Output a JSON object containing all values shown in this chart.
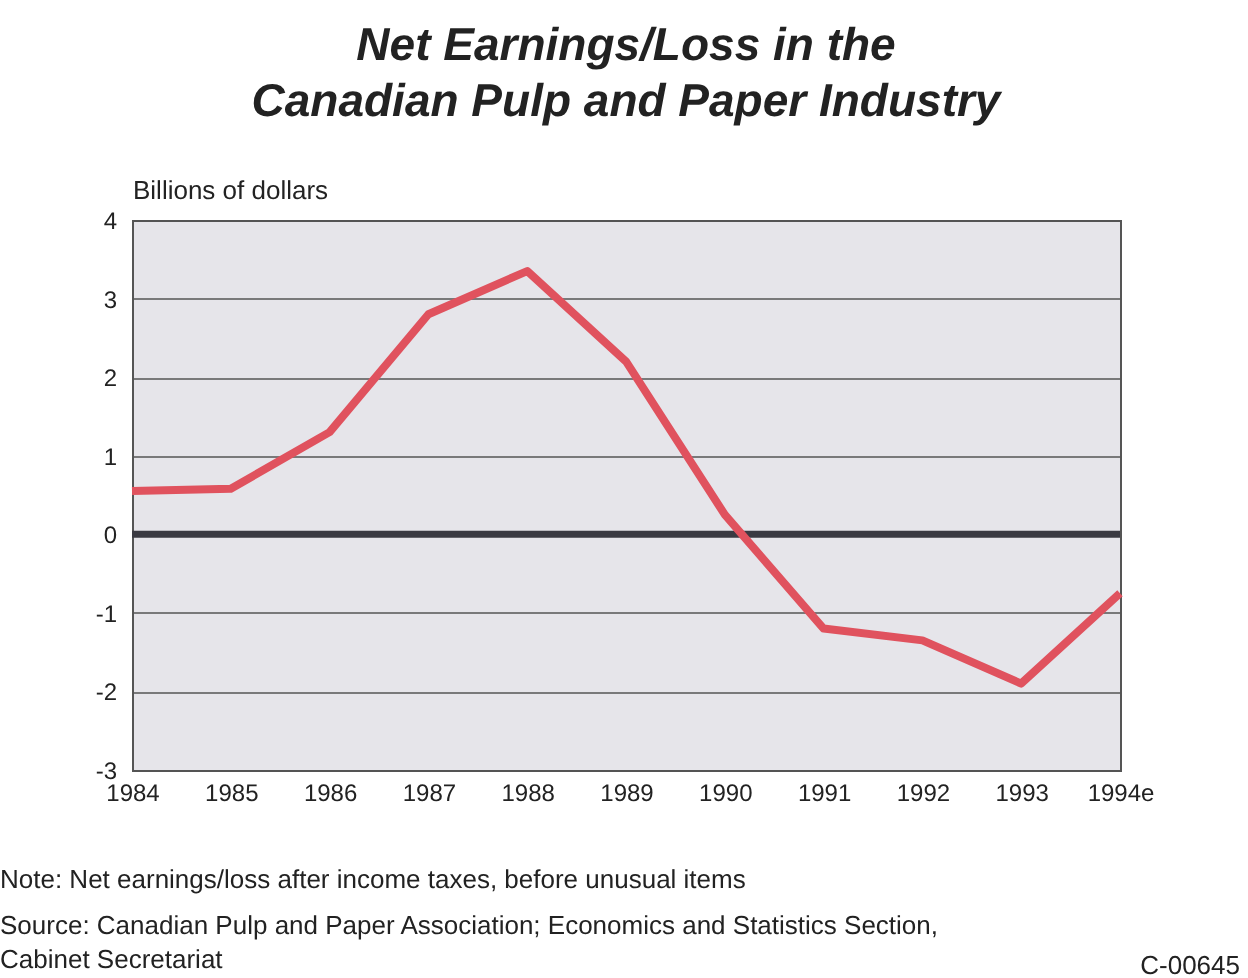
{
  "chart_data": {
    "type": "line",
    "title": "Net Earnings/Loss in the\nCanadian Pulp and Paper Industry",
    "ylabel": "Billions of dollars",
    "categories": [
      "1984",
      "1985",
      "1986",
      "1987",
      "1988",
      "1989",
      "1990",
      "1991",
      "1992",
      "1993",
      "1994e"
    ],
    "series": [
      {
        "color": "#e0525e",
        "values": [
          0.55,
          0.58,
          1.3,
          2.8,
          3.35,
          2.2,
          0.25,
          -1.2,
          -1.35,
          -1.9,
          -0.75
        ]
      }
    ],
    "ylim": [
      -3,
      4
    ],
    "yticks": [
      -3,
      -2,
      -1,
      0,
      1,
      2,
      3,
      4
    ],
    "grid": "y",
    "marker": "none",
    "line_style": "solid",
    "ref_lines": [
      {
        "axis": "y",
        "value": 0,
        "color": "#3a3a42"
      }
    ],
    "annotations": [
      "Note: Net earnings/loss after income taxes, before unusual items",
      "Source: Canadian Pulp and Paper Association; Economics and Statistics Section,\nCabinet Secretariat",
      "C-00645"
    ]
  }
}
